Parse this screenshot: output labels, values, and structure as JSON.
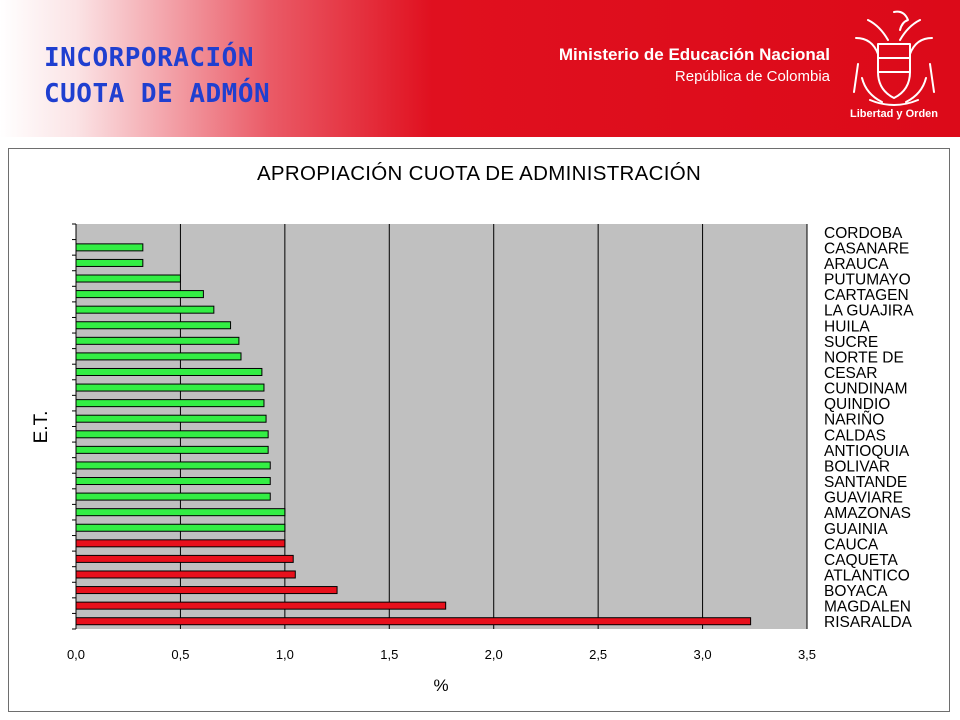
{
  "header": {
    "title_line1": "INCORPORACIÓN",
    "title_line2": "CUOTA DE ADMÓN",
    "ministry_name": "Ministerio de Educación Nacional",
    "country": "República de Colombia",
    "motto": "Libertad y Orden",
    "crest_icon": "colombia-coat-of-arms-icon"
  },
  "colors": {
    "banner_red": "#dc0a19",
    "title_blue": "#1f3fd0",
    "bar_green": "#33ee44",
    "bar_red": "#e8101c",
    "plot_bg": "#c0c0c0"
  },
  "chart_data": {
    "type": "bar",
    "orientation": "horizontal",
    "title": "APROPIACIÓN CUOTA DE ADMINISTRACIÓN",
    "xlabel": "%",
    "ylabel": "E.T.",
    "xlim": [
      0,
      3.5
    ],
    "x_ticks": [
      "0,0",
      "0,5",
      "1,0",
      "1,5",
      "2,0",
      "2,5",
      "3,0",
      "3,5"
    ],
    "grid": "vertical",
    "legend": "none",
    "categories": [
      "CORDOBA",
      "CASANARE",
      "ARAUCA",
      "PUTUMAYO",
      "CARTAGEN",
      "LA GUAJIRA",
      "HUILA",
      "SUCRE",
      "NORTE DE",
      "CESAR",
      "CUNDINAM",
      "QUINDIO",
      "NARIÑO",
      "CALDAS",
      "ANTIOQUIA",
      "BOLIVAR",
      "SANTANDE",
      "GUAVIARE",
      "AMAZONAS",
      "GUAINIA",
      "CAUCA",
      "CAQUETA",
      "ATLANTICO",
      "BOYACA",
      "MAGDALEN",
      "RISARALDA"
    ],
    "values": [
      null,
      0.32,
      0.32,
      0.5,
      0.61,
      0.66,
      0.74,
      0.78,
      0.79,
      0.89,
      0.9,
      0.9,
      0.91,
      0.92,
      0.92,
      0.93,
      0.93,
      0.93,
      1.0,
      1.0,
      1.0,
      1.04,
      1.05,
      1.25,
      1.77,
      3.23
    ],
    "bar_colors": [
      "green",
      "green",
      "green",
      "green",
      "green",
      "green",
      "green",
      "green",
      "green",
      "green",
      "green",
      "green",
      "green",
      "green",
      "green",
      "green",
      "green",
      "green",
      "green",
      "green",
      "red",
      "red",
      "red",
      "red",
      "red",
      "red"
    ]
  }
}
